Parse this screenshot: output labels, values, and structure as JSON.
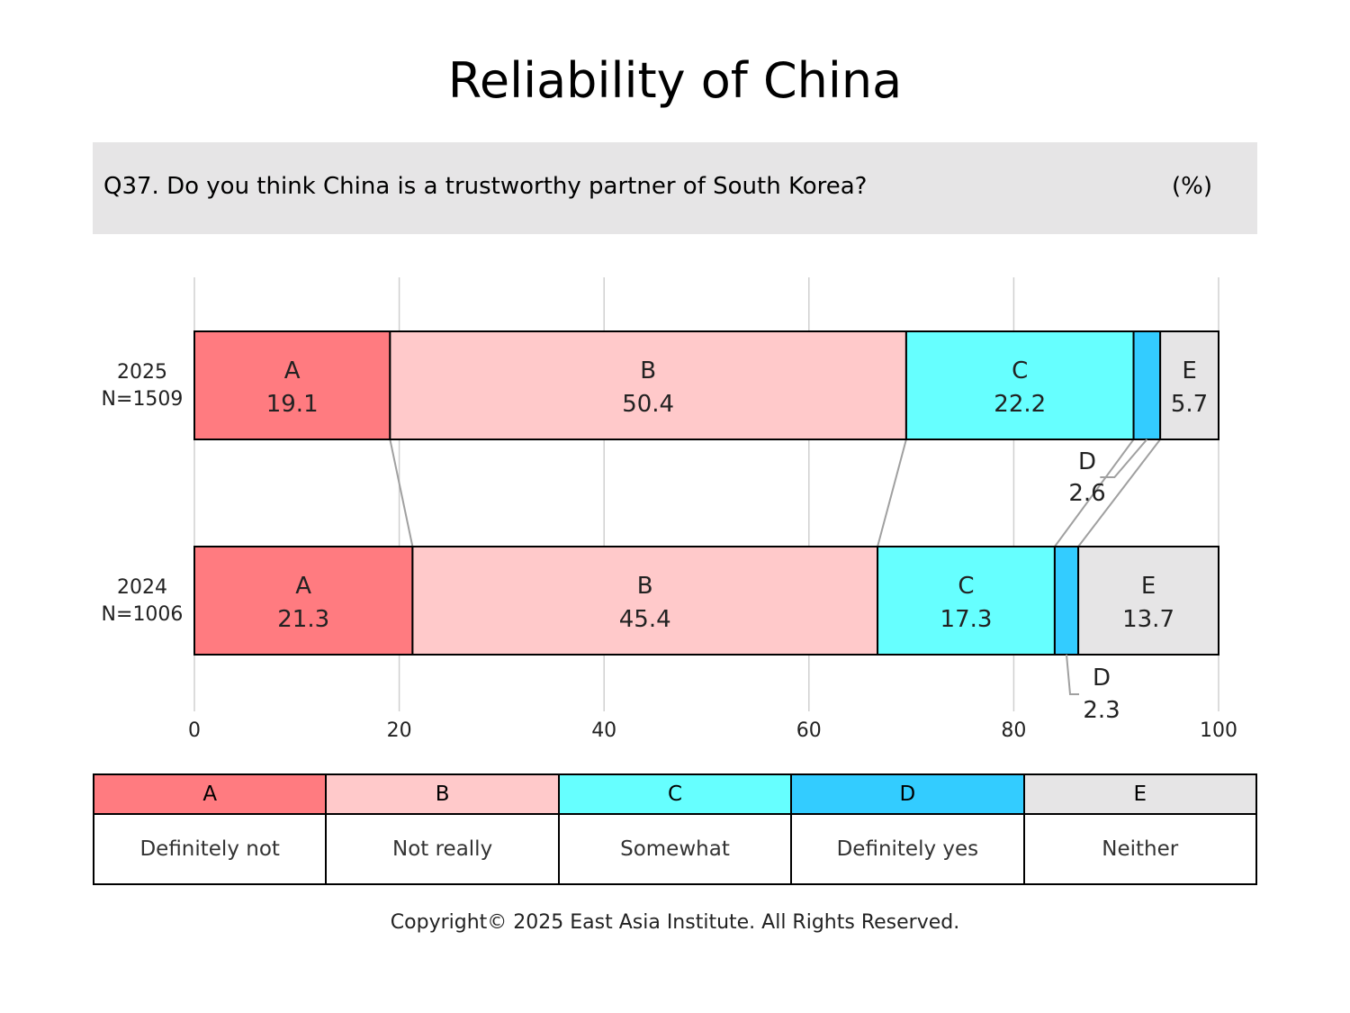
{
  "title": "Reliability of China",
  "question": "Q37. Do you think China is a trustworthy partner of South Korea?",
  "unit": "(%)",
  "copyright": "Copyright© 2025 East Asia Institute. All Rights Reserved.",
  "legend": [
    {
      "code": "A",
      "label": "Definitely not",
      "color": "#ff7b80"
    },
    {
      "code": "B",
      "label": "Not really",
      "color": "#ffc9ca"
    },
    {
      "code": "C",
      "label": "Somewhat",
      "color": "#66ffff"
    },
    {
      "code": "D",
      "label": "Definitely yes",
      "color": "#33ccff"
    },
    {
      "code": "E",
      "label": "Neither",
      "color": "#e6e5e6"
    }
  ],
  "chart_data": {
    "type": "bar",
    "orientation": "horizontal",
    "stacked": true,
    "xlim": [
      0,
      100
    ],
    "xticks": [
      0,
      20,
      40,
      60,
      80,
      100
    ],
    "grid": true,
    "categories": [
      {
        "year": "2025",
        "n": "N=1509"
      },
      {
        "year": "2024",
        "n": "N=1006"
      }
    ],
    "series": [
      {
        "name": "A",
        "values": [
          19.1,
          21.3
        ]
      },
      {
        "name": "B",
        "values": [
          50.4,
          45.4
        ]
      },
      {
        "name": "C",
        "values": [
          22.2,
          17.3
        ]
      },
      {
        "name": "D",
        "values": [
          2.6,
          2.3
        ]
      },
      {
        "name": "E",
        "values": [
          5.7,
          13.7
        ]
      }
    ]
  }
}
